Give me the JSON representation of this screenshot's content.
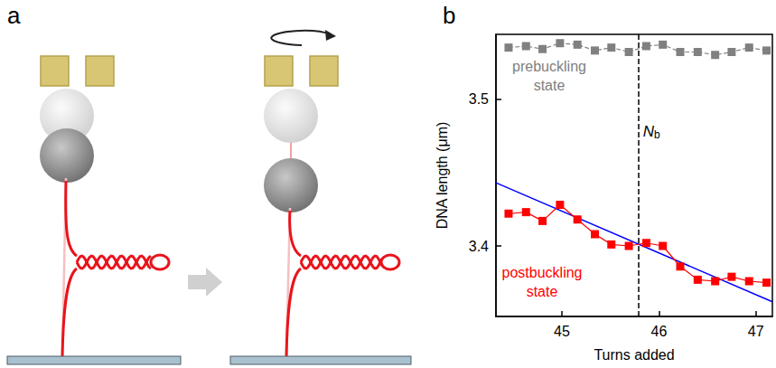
{
  "panel_labels": [
    "a",
    "b"
  ],
  "chart_data": {
    "type": "line",
    "x_label": "Turns added",
    "y_label": "DNA length (μm)",
    "xlim": [
      44.32,
      47.17
    ],
    "ylim": [
      3.352,
      3.544
    ],
    "xticks": [
      45,
      46,
      47
    ],
    "yticks": [
      3.4,
      3.5
    ],
    "x": [
      44.45,
      44.63,
      44.8,
      44.98,
      45.16,
      45.34,
      45.51,
      45.69,
      45.87,
      46.04,
      46.22,
      46.4,
      46.58,
      46.75,
      46.93,
      47.11
    ],
    "series": [
      {
        "color": "#808080",
        "marker": "square",
        "line_style": "dashed",
        "values": [
          3.535,
          3.536,
          3.534,
          3.538,
          3.537,
          3.533,
          3.535,
          3.532,
          3.536,
          3.537,
          3.532,
          3.532,
          3.53,
          3.532,
          3.535,
          3.533
        ]
      },
      {
        "color": "#ff0000",
        "marker": "square",
        "line_style": "solid",
        "values": [
          3.422,
          3.423,
          3.417,
          3.428,
          3.418,
          3.408,
          3.401,
          3.4,
          3.402,
          3.4,
          3.386,
          3.377,
          3.376,
          3.379,
          3.376,
          3.375
        ]
      },
      {
        "type": "line",
        "color": "#0000ff",
        "marker": "none",
        "line_style": "solid",
        "x": [
          44.32,
          47.17
        ],
        "values": [
          3.443,
          3.362
        ]
      }
    ],
    "annotations": [
      {
        "text": "prebuckling state",
        "color": "#808080"
      },
      {
        "text": "postbuckling state",
        "color": "#ff0000"
      }
    ],
    "reference_line": {
      "x": 45.79,
      "line_style": "dashed",
      "label": "N",
      "label_subscript": "b"
    }
  }
}
